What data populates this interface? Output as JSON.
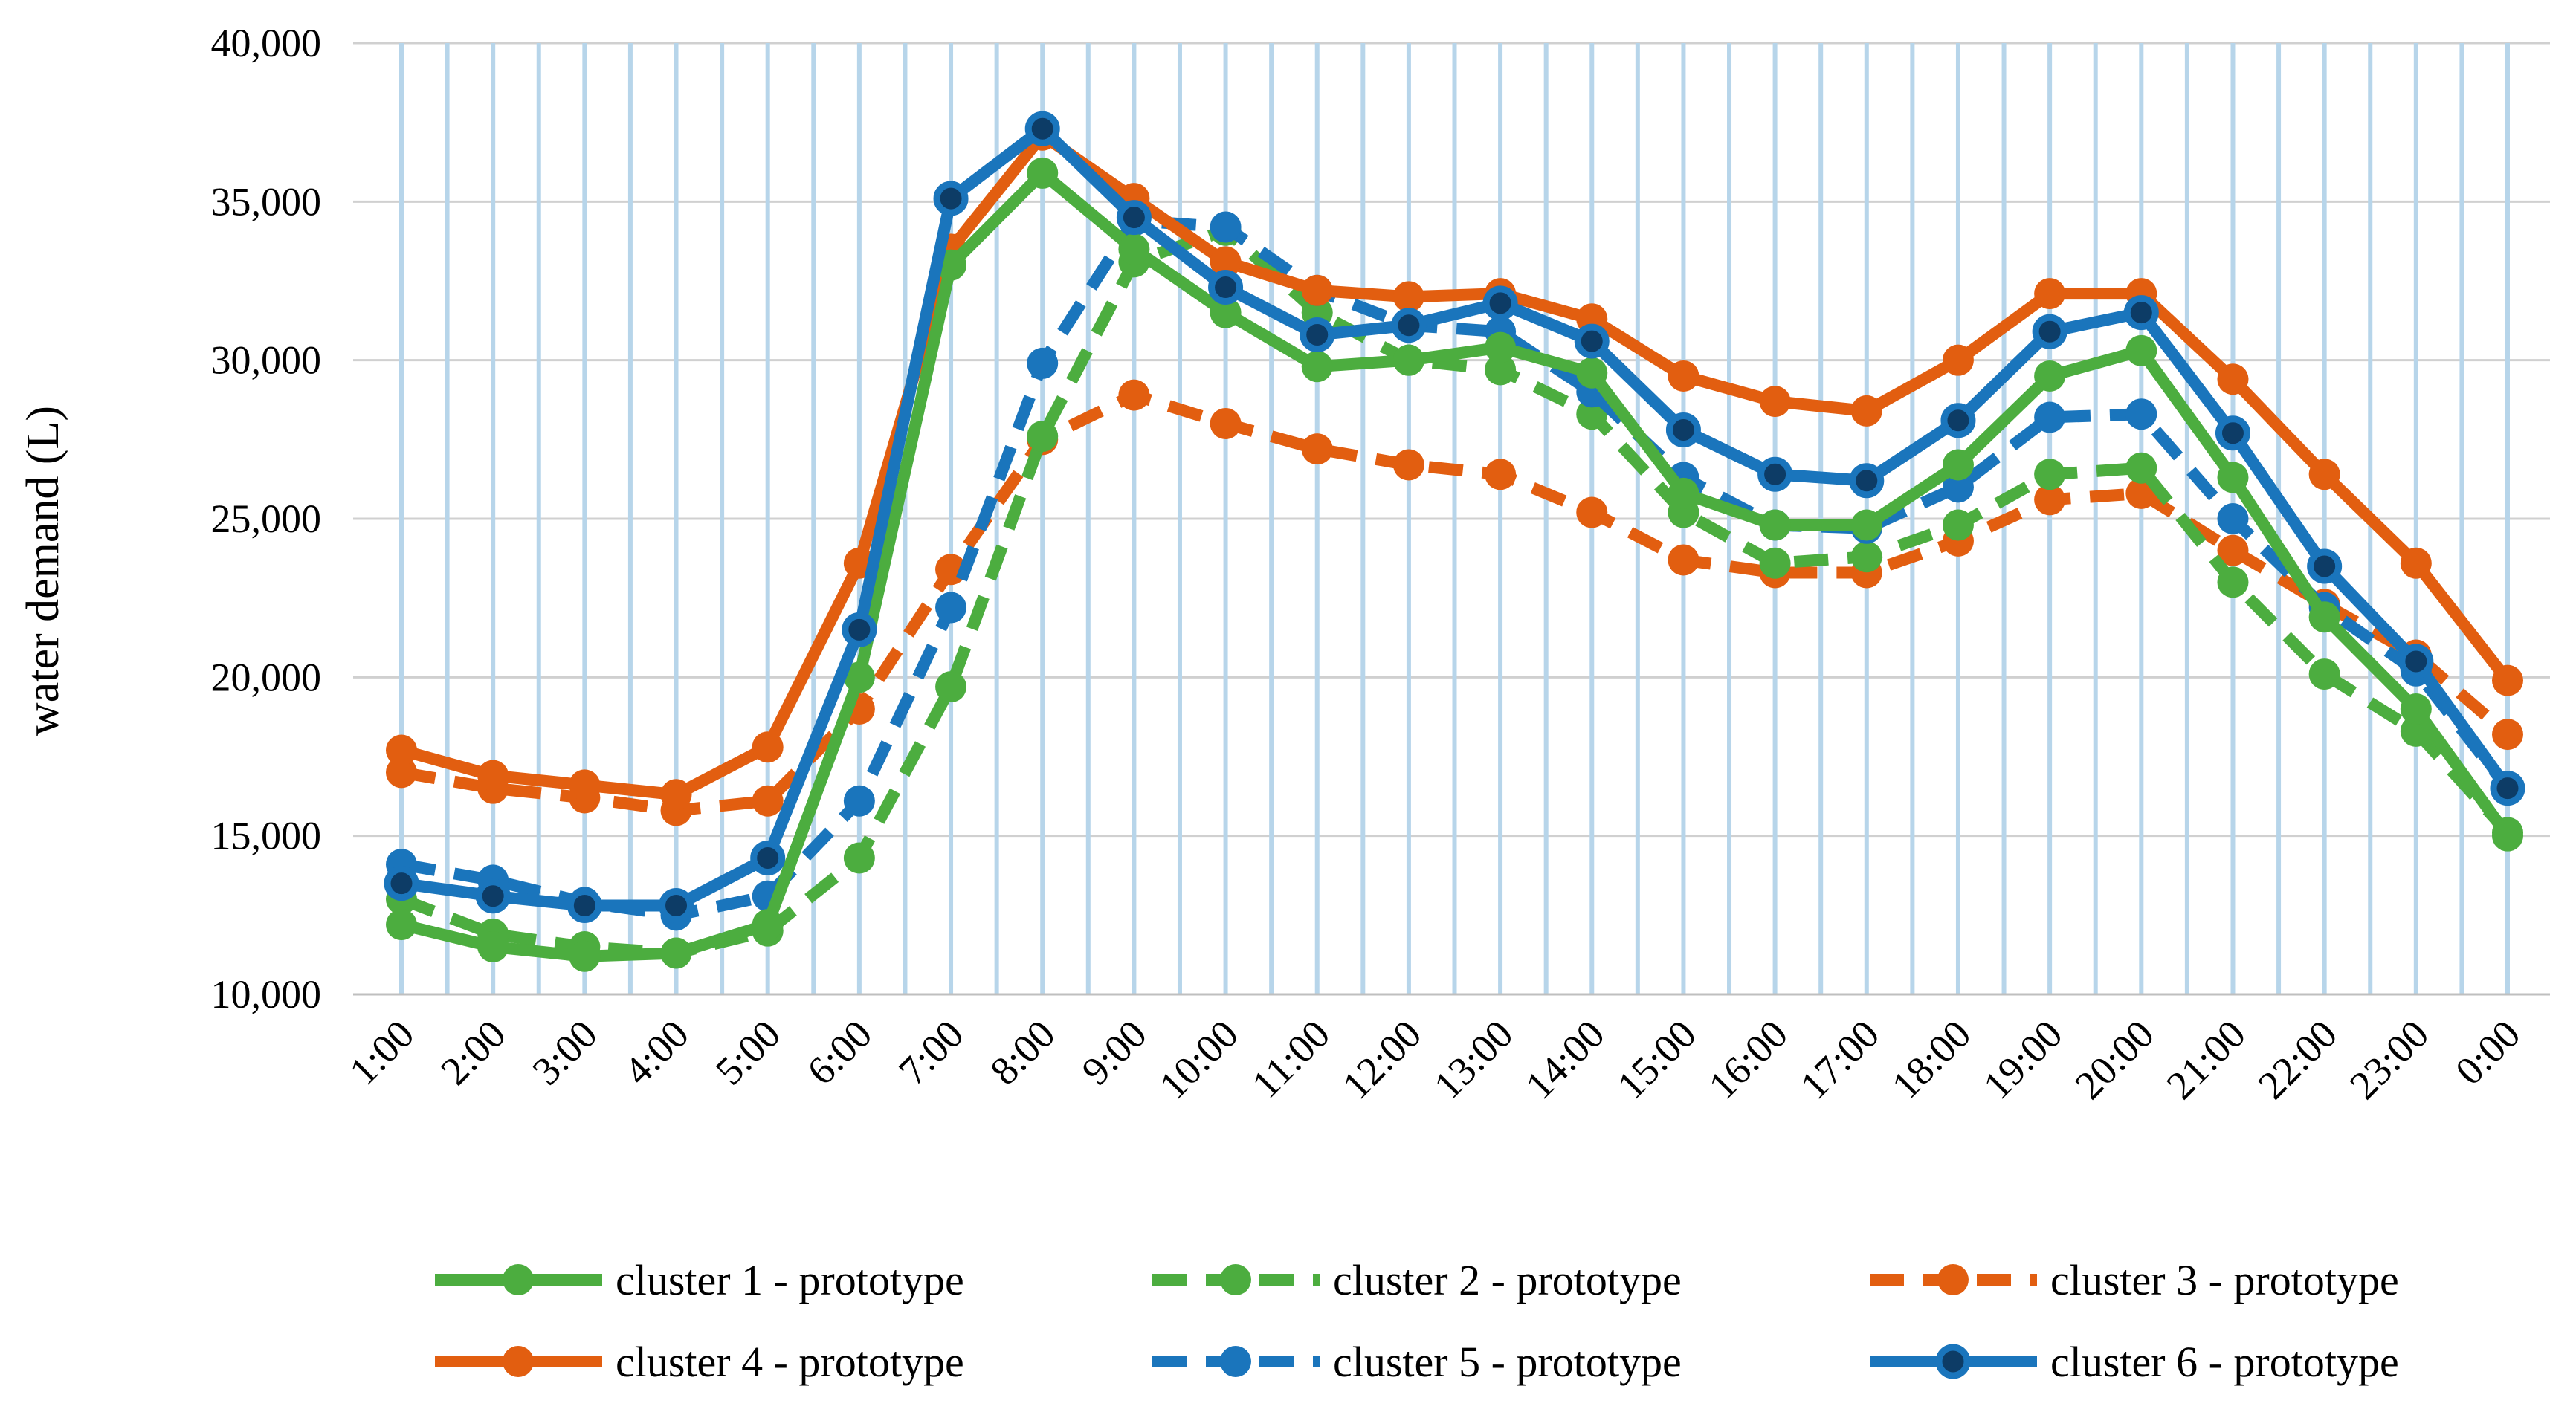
{
  "chart_data": {
    "type": "line",
    "title": "",
    "xlabel": "",
    "ylabel": "water demand  (L)",
    "ylim": [
      10000,
      40000
    ],
    "yticks": [
      10000,
      15000,
      20000,
      25000,
      30000,
      35000,
      40000
    ],
    "ytick_labels": [
      "10,000",
      "15,000",
      "20,000",
      "25,000",
      "30,000",
      "35,000",
      "40,000"
    ],
    "grid": true,
    "legend_position": "bottom",
    "categories": [
      "1:00",
      "2:00",
      "3:00",
      "4:00",
      "5:00",
      "6:00",
      "7:00",
      "8:00",
      "9:00",
      "10:00",
      "11:00",
      "12:00",
      "13:00",
      "14:00",
      "15:00",
      "16:00",
      "17:00",
      "18:00",
      "19:00",
      "20:00",
      "21:00",
      "22:00",
      "23:00",
      "0:00"
    ],
    "series": [
      {
        "name": "cluster 1 - prototype",
        "color": "#4cad3f",
        "dash": "solid",
        "marker": "filled",
        "values": [
          12200,
          11500,
          11200,
          11300,
          12200,
          20000,
          33000,
          35900,
          33500,
          31500,
          29800,
          30000,
          30400,
          29600,
          25800,
          24800,
          24800,
          26700,
          29500,
          30300,
          26300,
          21900,
          19000,
          15000
        ]
      },
      {
        "name": "cluster 2 - prototype",
        "color": "#4cad3f",
        "dash": "dashed",
        "marker": "filled",
        "values": [
          13000,
          11900,
          11500,
          11300,
          12000,
          14300,
          19700,
          27600,
          33100,
          34100,
          31500,
          30000,
          29700,
          28300,
          25200,
          23600,
          23800,
          24800,
          26400,
          26600,
          23000,
          20100,
          18300,
          15100
        ]
      },
      {
        "name": "cluster 3 - prototype",
        "color": "#e25e10",
        "dash": "dashed",
        "marker": "filled",
        "values": [
          17000,
          16500,
          16200,
          15800,
          16100,
          19000,
          23400,
          27500,
          28900,
          28000,
          27200,
          26700,
          26400,
          25200,
          23700,
          23300,
          23300,
          24300,
          25600,
          25800,
          24000,
          22300,
          20700,
          18200
        ]
      },
      {
        "name": "cluster 4 - prototype",
        "color": "#e25e10",
        "dash": "solid",
        "marker": "filled",
        "values": [
          17700,
          16900,
          16600,
          16300,
          17800,
          23600,
          33500,
          37100,
          35100,
          33100,
          32200,
          32000,
          32100,
          31300,
          29500,
          28700,
          28400,
          30000,
          32100,
          32100,
          29400,
          26400,
          23600,
          19900
        ]
      },
      {
        "name": "cluster 5 - prototype",
        "color": "#1a75bc",
        "dash": "dashed",
        "marker": "filled",
        "values": [
          14100,
          13600,
          12900,
          12500,
          13100,
          16100,
          22200,
          29900,
          34400,
          34200,
          32200,
          31100,
          30900,
          29000,
          26300,
          24800,
          24700,
          26000,
          28200,
          28300,
          25000,
          22200,
          20200,
          16500
        ]
      },
      {
        "name": "cluster 6 - prototype",
        "color": "#1a75bc",
        "dash": "solid",
        "marker": "dark",
        "values": [
          13500,
          13100,
          12800,
          12800,
          14300,
          21500,
          35100,
          37300,
          34500,
          32300,
          30800,
          31100,
          31800,
          30600,
          27800,
          26400,
          26200,
          28100,
          30900,
          31500,
          27700,
          23500,
          20500,
          16500
        ]
      }
    ]
  }
}
